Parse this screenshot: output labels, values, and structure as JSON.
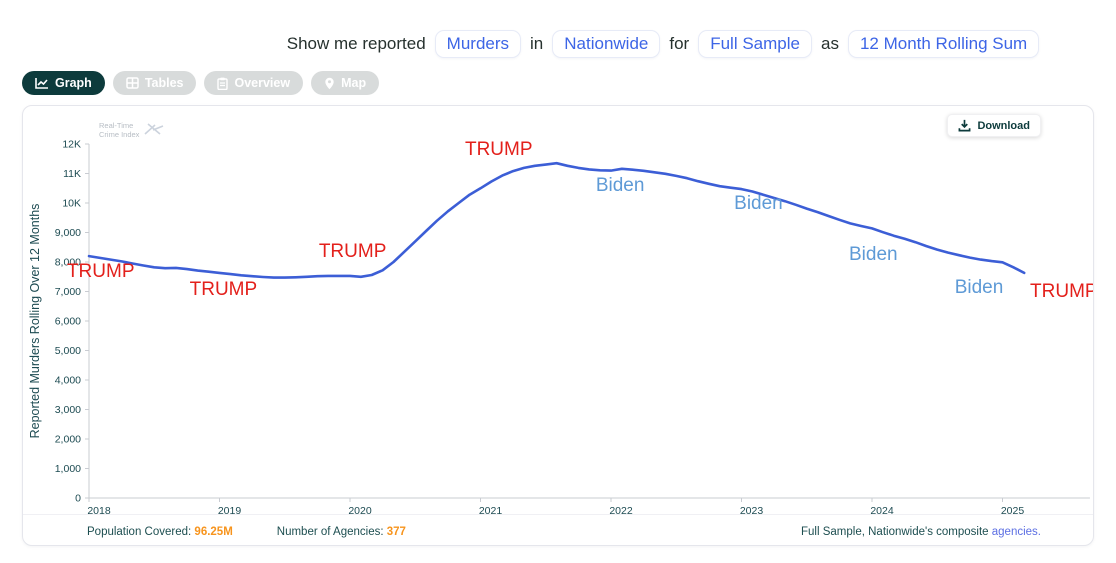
{
  "query_bar": {
    "prefix": "Show me reported",
    "metric": "Murders",
    "connector_in": "in",
    "location": "Nationwide",
    "connector_for": "for",
    "sample": "Full Sample",
    "connector_as": "as",
    "aggregation": "12 Month Rolling Sum"
  },
  "tabs": [
    {
      "label": "Graph",
      "icon": "line-chart-icon",
      "active": true
    },
    {
      "label": "Tables",
      "icon": "table-icon",
      "active": false
    },
    {
      "label": "Overview",
      "icon": "clipboard-icon",
      "active": false
    },
    {
      "label": "Map",
      "icon": "map-pin-icon",
      "active": false
    }
  ],
  "watermark": {
    "line1": "Real-Time",
    "line2": "Crime Index"
  },
  "download_button": {
    "label": "Download",
    "icon": "download-icon"
  },
  "footer": {
    "population_label": "Population Covered:",
    "population_value": "96.25M",
    "agencies_label": "Number of Agencies:",
    "agencies_value": "377",
    "note_text": "Full Sample, Nationwide's composite ",
    "note_link": "agencies."
  },
  "colors": {
    "line": "#3c5ed6",
    "trump_label": "#e3201b",
    "biden_label": "#5e9ad6",
    "axis": "#c9ccd2",
    "tick_text": "#1d4b52",
    "accent_teal": "#0d3b3c",
    "accent_orange": "#f7941d",
    "link_blue": "#5c6fe3",
    "pill_blue": "#3d65e6"
  },
  "chart_data": {
    "type": "line",
    "title": "",
    "xlabel": "",
    "ylabel": "Reported Murders Rolling Over 12 Months",
    "grid": false,
    "legend": "none",
    "ylim": [
      0,
      12000
    ],
    "xlim": [
      2018,
      2025.67
    ],
    "x_ticks": [
      {
        "v": 2018,
        "label": "2018"
      },
      {
        "v": 2019,
        "label": "2019"
      },
      {
        "v": 2020,
        "label": "2020"
      },
      {
        "v": 2021,
        "label": "2021"
      },
      {
        "v": 2022,
        "label": "2022"
      },
      {
        "v": 2023,
        "label": "2023"
      },
      {
        "v": 2024,
        "label": "2024"
      },
      {
        "v": 2025,
        "label": "2025"
      }
    ],
    "y_ticks": [
      {
        "v": 0,
        "label": "0"
      },
      {
        "v": 1000,
        "label": "1,000"
      },
      {
        "v": 2000,
        "label": "2,000"
      },
      {
        "v": 3000,
        "label": "3,000"
      },
      {
        "v": 4000,
        "label": "4,000"
      },
      {
        "v": 5000,
        "label": "5,000"
      },
      {
        "v": 6000,
        "label": "6,000"
      },
      {
        "v": 7000,
        "label": "7,000"
      },
      {
        "v": 8000,
        "label": "8,000"
      },
      {
        "v": 9000,
        "label": "9,000"
      },
      {
        "v": 10000,
        "label": "10K"
      },
      {
        "v": 11000,
        "label": "11K"
      },
      {
        "v": 12000,
        "label": "12K"
      }
    ],
    "series": [
      {
        "name": "Murders 12 Month Rolling Sum",
        "color": "#3c5ed6",
        "x_start": 2018.0,
        "x_step_years": 0.0833333,
        "values": [
          8200,
          8140,
          8080,
          8020,
          7950,
          7880,
          7820,
          7790,
          7800,
          7760,
          7710,
          7670,
          7630,
          7590,
          7550,
          7520,
          7490,
          7470,
          7470,
          7480,
          7500,
          7520,
          7530,
          7530,
          7530,
          7500,
          7560,
          7720,
          8000,
          8350,
          8700,
          9050,
          9400,
          9720,
          10000,
          10280,
          10500,
          10730,
          10930,
          11080,
          11190,
          11260,
          11300,
          11350,
          11260,
          11190,
          11140,
          11110,
          11100,
          11160,
          11130,
          11090,
          11040,
          10990,
          10920,
          10840,
          10740,
          10650,
          10570,
          10520,
          10470,
          10390,
          10280,
          10170,
          10060,
          9940,
          9810,
          9690,
          9560,
          9430,
          9310,
          9220,
          9140,
          9010,
          8890,
          8790,
          8670,
          8540,
          8420,
          8320,
          8230,
          8150,
          8080,
          8030,
          7990,
          7820,
          7630
        ]
      }
    ],
    "annotations": [
      {
        "text": "TRUMP",
        "x": 2018.09,
        "y": 7700,
        "color": "#e3201b"
      },
      {
        "text": "TRUMP",
        "x": 2019.03,
        "y": 7080,
        "color": "#e3201b"
      },
      {
        "text": "TRUMP",
        "x": 2020.02,
        "y": 8370,
        "color": "#e3201b"
      },
      {
        "text": "TRUMP",
        "x": 2021.14,
        "y": 11830,
        "color": "#e3201b"
      },
      {
        "text": "Biden",
        "x": 2022.07,
        "y": 10610,
        "color": "#5e9ad6"
      },
      {
        "text": "Biden",
        "x": 2023.13,
        "y": 10000,
        "color": "#5e9ad6"
      },
      {
        "text": "Biden",
        "x": 2024.01,
        "y": 8270,
        "color": "#5e9ad6"
      },
      {
        "text": "Biden",
        "x": 2024.82,
        "y": 7150,
        "color": "#5e9ad6"
      },
      {
        "text": "TRUMP",
        "x": 2025.47,
        "y": 7020,
        "color": "#e3201b"
      }
    ]
  }
}
